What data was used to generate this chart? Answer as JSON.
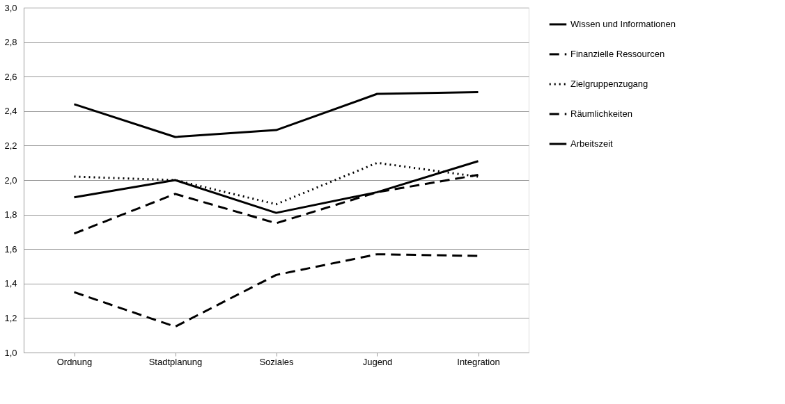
{
  "chart_data": {
    "type": "line",
    "categories": [
      "Ordnung",
      "Stadtplanung",
      "Soziales",
      "Jugend",
      "Integration"
    ],
    "series": [
      {
        "name": "Wissen und Informationen",
        "color": "#000000",
        "line_style": "solid",
        "values": [
          2.44,
          2.25,
          2.29,
          2.5,
          2.51
        ]
      },
      {
        "name": "Finanzielle Ressourcen",
        "color": "#000000",
        "line_style": "dashed",
        "values": [
          1.35,
          1.15,
          1.45,
          1.57,
          1.56
        ]
      },
      {
        "name": "Zielgruppenzugang",
        "color": "#000000",
        "line_style": "dotted",
        "values": [
          2.02,
          2.0,
          1.86,
          2.1,
          2.02
        ]
      },
      {
        "name": "Räumlichkeiten",
        "color": "#000000",
        "line_style": "dashed",
        "values": [
          1.69,
          1.92,
          1.75,
          1.93,
          2.03
        ]
      },
      {
        "name": "Arbeitszeit",
        "color": "#000000",
        "line_style": "solid",
        "values": [
          1.9,
          2.0,
          1.81,
          1.93,
          2.11
        ]
      }
    ],
    "ylim": [
      1.0,
      3.0
    ],
    "yticks": [
      {
        "value": 1.0,
        "label": "1,0"
      },
      {
        "value": 1.2,
        "label": "1,2"
      },
      {
        "value": 1.4,
        "label": "1,4"
      },
      {
        "value": 1.6,
        "label": "1,6"
      },
      {
        "value": 1.8,
        "label": "1,8"
      },
      {
        "value": 2.0,
        "label": "2,0"
      },
      {
        "value": 2.2,
        "label": "2,2"
      },
      {
        "value": 2.4,
        "label": "2,4"
      },
      {
        "value": 2.6,
        "label": "2,6"
      },
      {
        "value": 2.8,
        "label": "2,8"
      },
      {
        "value": 3.0,
        "label": "3,0"
      }
    ],
    "grid": "y",
    "legend": "right",
    "marker": "none"
  }
}
